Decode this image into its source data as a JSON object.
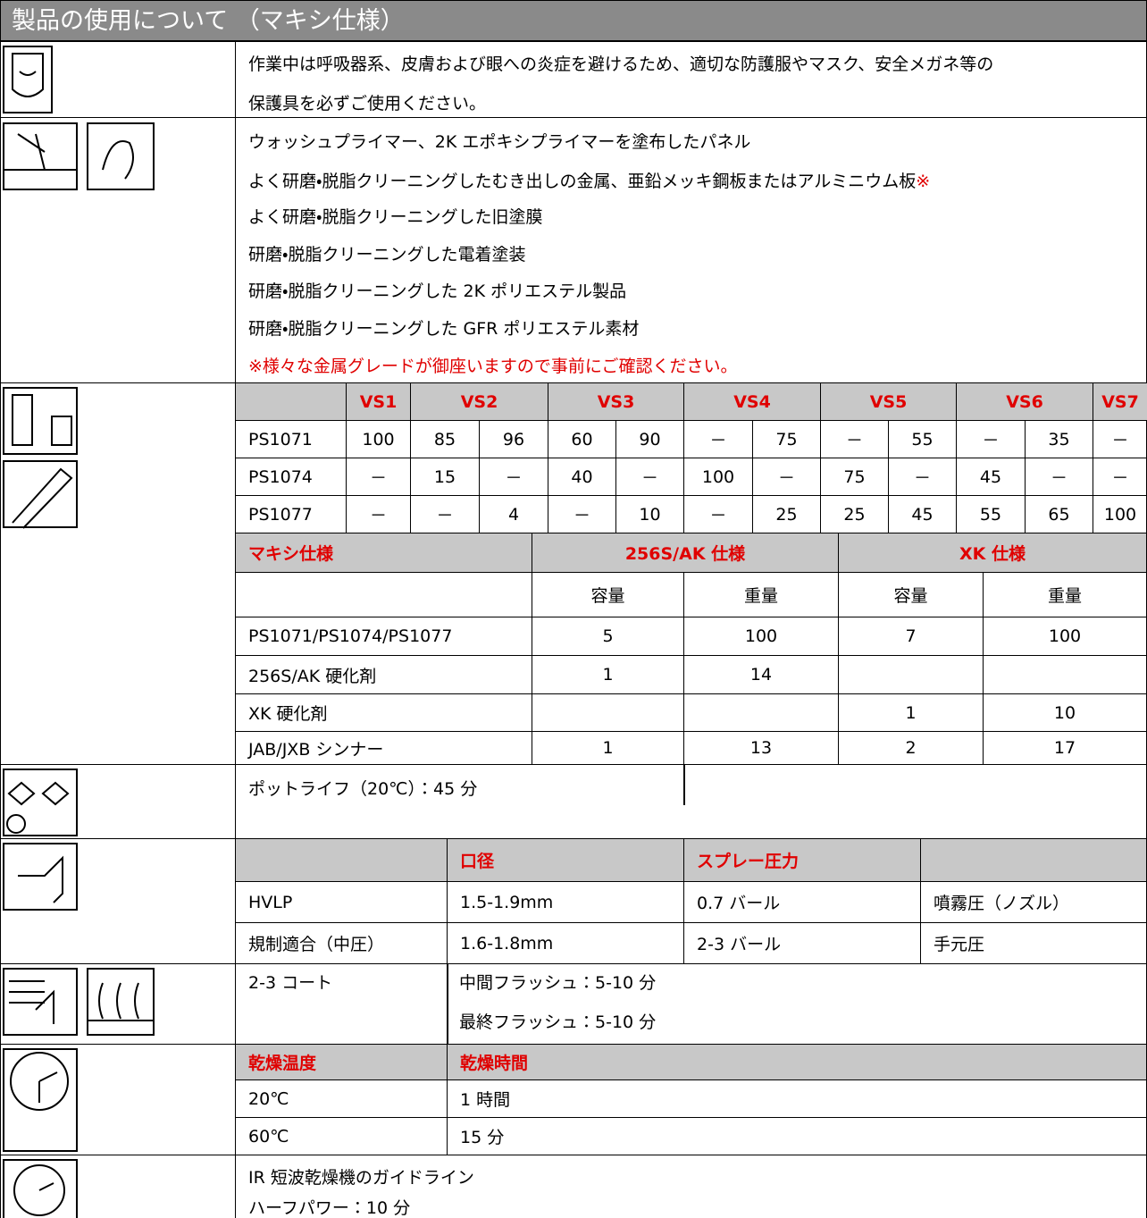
{
  "header": {
    "title": "製品の使用について （マキシ仕様）"
  },
  "protection": {
    "lines": [
      "作業中は呼吸器系、皮膚および眼への炎症を避けるため、適切な防護服やマスク、安全メガネ等の",
      "保護具を必ずご使用ください。"
    ]
  },
  "substrates": {
    "lines": [
      "ウォッシュプライマー、2K エポキシプライマーを塗布したパネル",
      "よく研磨・脱脂クリーニングしたむき出しの金属、亜鉛メッキ鋼板またはアルミニウム板",
      "よく研磨・脱脂クリーニングした旧塗膜",
      "研磨・脱脂クリーニングした電着塗装",
      "研磨・脱脂クリーニングした 2K ポリエステル製品",
      "研磨・脱脂クリーニングした GFR ポリエステル素材"
    ],
    "footnote_mark": "※",
    "warning": "※様々な金属グレードが御座いますので事前にご確認ください。"
  },
  "mixing_ratio": {
    "headers": [
      "VS1",
      "VS2",
      "VS3",
      "VS4",
      "VS5",
      "VS6",
      "VS7"
    ],
    "rows": [
      {
        "label": "PS1071",
        "values": [
          "100",
          "85",
          "96",
          "60",
          "90",
          "－",
          "75",
          "－",
          "55",
          "－",
          "35",
          "－"
        ]
      },
      {
        "label": "PS1074",
        "values": [
          "－",
          "15",
          "－",
          "40",
          "－",
          "100",
          "－",
          "75",
          "－",
          "45",
          "－",
          "－"
        ]
      },
      {
        "label": "PS1077",
        "values": [
          "－",
          "－",
          "4",
          "－",
          "10",
          "－",
          "25",
          "25",
          "45",
          "55",
          "65",
          "100"
        ]
      }
    ]
  },
  "maxi_table": {
    "title": "マキシ仕様",
    "groups": [
      "256S/AK 仕様",
      "XK 仕様"
    ],
    "subheaders": [
      "容量",
      "重量",
      "容量",
      "重量"
    ],
    "rows": [
      {
        "label": "PS1071/PS1074/PS1077",
        "values": [
          "5",
          "100",
          "7",
          "100"
        ]
      },
      {
        "label": "256S/AK 硬化剤",
        "values": [
          "1",
          "14",
          null,
          null
        ]
      },
      {
        "label": "XK 硬化剤",
        "values": [
          null,
          null,
          "1",
          "10"
        ]
      },
      {
        "label": "JAB/JXB シンナー",
        "values": [
          "1",
          "13",
          "2",
          "17"
        ]
      }
    ]
  },
  "pot_life": {
    "text": "ポットライフ（20℃）：45 分"
  },
  "spray": {
    "headers": [
      "口径",
      "スプレー圧力"
    ],
    "rows": [
      [
        "HVLP",
        "1.5-1.9mm",
        "0.7 バール",
        "噴霧圧（ノズル）"
      ],
      [
        "規制適合（中圧）",
        "1.6-1.8mm",
        "2-3 バール",
        "手元圧"
      ]
    ]
  },
  "coats": {
    "count": "2-3 コート",
    "flash": [
      "中間フラッシュ：5-10 分",
      "最終フラッシュ：5-10 分"
    ]
  },
  "drying": {
    "headers": [
      "乾燥温度",
      "乾燥時間"
    ],
    "rows": [
      [
        "20℃",
        "1 時間"
      ],
      [
        "60℃",
        "15 分"
      ]
    ]
  },
  "ir": {
    "lines": [
      "IR 短波乾燥機のガイドライン",
      "ハーフパワー：10 分"
    ]
  }
}
